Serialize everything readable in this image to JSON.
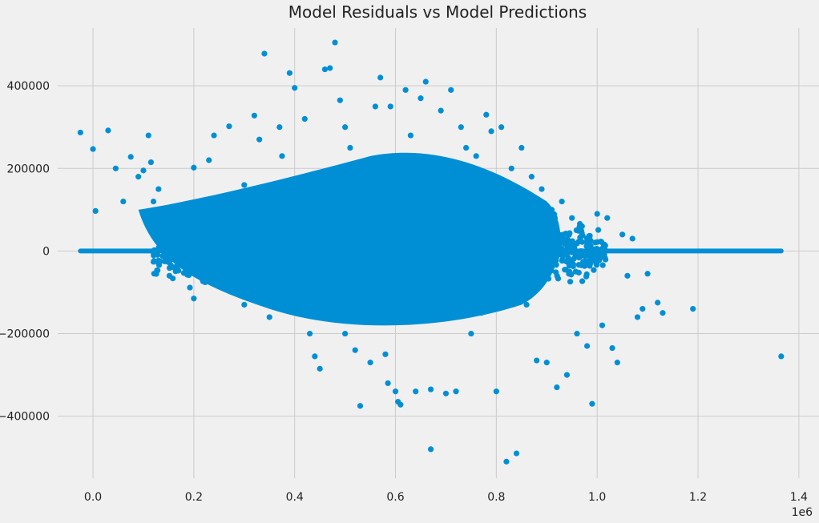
{
  "chart_data": {
    "type": "scatter",
    "title": "Model Residuals vs Model Predictions",
    "xlabel": "",
    "ylabel": "",
    "x_scale_label": "1e6",
    "x_ticks": [
      0.0,
      0.2,
      0.4,
      0.6,
      0.8,
      1.0,
      1.2,
      1.4
    ],
    "x_tick_labels": [
      "0.0",
      "0.2",
      "0.4",
      "0.6",
      "0.8",
      "1.0",
      "1.2",
      "1.4"
    ],
    "y_ticks": [
      -400000,
      -200000,
      0,
      200000,
      400000
    ],
    "y_tick_labels": [
      "−400000",
      "−200000",
      "0",
      "200000",
      "400000"
    ],
    "xlim": [
      -0.07,
      1.44
    ],
    "ylim": [
      -550000,
      540000
    ],
    "grid": true,
    "point_color": "#008fd5",
    "background_color": "#f0f0f0",
    "grid_color": "#cbcbcb",
    "series": [
      {
        "kind": "zero_line",
        "x_range": [
          -0.025,
          1.365
        ],
        "y": 0
      },
      {
        "kind": "residual_cloud",
        "points": [
          [
            -0.025,
            287000
          ],
          [
            0.0,
            247000
          ],
          [
            0.005,
            97000
          ],
          [
            0.03,
            292000
          ],
          [
            0.045,
            200000
          ],
          [
            0.06,
            120000
          ],
          [
            0.075,
            228000
          ],
          [
            0.09,
            180000
          ],
          [
            0.1,
            195000
          ],
          [
            0.11,
            280000
          ],
          [
            0.115,
            215000
          ],
          [
            0.12,
            120000
          ],
          [
            0.13,
            150000
          ],
          [
            0.14,
            100000
          ],
          [
            0.15,
            60000
          ],
          [
            0.16,
            20000
          ],
          [
            0.17,
            -10000
          ],
          [
            0.18,
            40000
          ],
          [
            0.19,
            -40000
          ],
          [
            0.2,
            202000
          ],
          [
            0.2,
            -115000
          ],
          [
            0.21,
            -60000
          ],
          [
            0.22,
            90000
          ],
          [
            0.23,
            220000
          ],
          [
            0.24,
            280000
          ],
          [
            0.25,
            -30000
          ],
          [
            0.26,
            120000
          ],
          [
            0.27,
            302000
          ],
          [
            0.28,
            -90000
          ],
          [
            0.3,
            160000
          ],
          [
            0.3,
            -130000
          ],
          [
            0.31,
            50000
          ],
          [
            0.32,
            328000
          ],
          [
            0.33,
            270000
          ],
          [
            0.34,
            478000
          ],
          [
            0.35,
            -160000
          ],
          [
            0.36,
            100000
          ],
          [
            0.37,
            300000
          ],
          [
            0.375,
            230000
          ],
          [
            0.39,
            431000
          ],
          [
            0.4,
            395000
          ],
          [
            0.41,
            -90000
          ],
          [
            0.42,
            320000
          ],
          [
            0.43,
            -200000
          ],
          [
            0.44,
            -255000
          ],
          [
            0.45,
            -285000
          ],
          [
            0.46,
            440000
          ],
          [
            0.47,
            443000
          ],
          [
            0.48,
            505000
          ],
          [
            0.49,
            365000
          ],
          [
            0.5,
            300000
          ],
          [
            0.5,
            -200000
          ],
          [
            0.51,
            250000
          ],
          [
            0.52,
            -240000
          ],
          [
            0.53,
            -375000
          ],
          [
            0.54,
            200000
          ],
          [
            0.55,
            -270000
          ],
          [
            0.56,
            350000
          ],
          [
            0.57,
            420000
          ],
          [
            0.58,
            -250000
          ],
          [
            0.585,
            -320000
          ],
          [
            0.59,
            350000
          ],
          [
            0.6,
            -340000
          ],
          [
            0.605,
            -365000
          ],
          [
            0.61,
            -372000
          ],
          [
            0.62,
            390000
          ],
          [
            0.63,
            280000
          ],
          [
            0.64,
            -340000
          ],
          [
            0.65,
            370000
          ],
          [
            0.66,
            410000
          ],
          [
            0.67,
            -480000
          ],
          [
            0.67,
            -335000
          ],
          [
            0.68,
            200000
          ],
          [
            0.69,
            340000
          ],
          [
            0.7,
            -345000
          ],
          [
            0.71,
            390000
          ],
          [
            0.72,
            -340000
          ],
          [
            0.73,
            300000
          ],
          [
            0.74,
            250000
          ],
          [
            0.75,
            -200000
          ],
          [
            0.76,
            230000
          ],
          [
            0.77,
            -150000
          ],
          [
            0.78,
            330000
          ],
          [
            0.79,
            290000
          ],
          [
            0.8,
            -340000
          ],
          [
            0.81,
            300000
          ],
          [
            0.82,
            -510000
          ],
          [
            0.83,
            200000
          ],
          [
            0.84,
            -490000
          ],
          [
            0.85,
            250000
          ],
          [
            0.86,
            -130000
          ],
          [
            0.87,
            180000
          ],
          [
            0.88,
            -265000
          ],
          [
            0.89,
            150000
          ],
          [
            0.9,
            -270000
          ],
          [
            0.91,
            100000
          ],
          [
            0.92,
            -330000
          ],
          [
            0.93,
            120000
          ],
          [
            0.94,
            -300000
          ],
          [
            0.95,
            80000
          ],
          [
            0.96,
            -200000
          ],
          [
            0.97,
            60000
          ],
          [
            0.98,
            -230000
          ],
          [
            0.99,
            -370000
          ],
          [
            1.0,
            90000
          ],
          [
            1.01,
            -180000
          ],
          [
            1.02,
            80000
          ],
          [
            1.03,
            -235000
          ],
          [
            1.04,
            -270000
          ],
          [
            1.05,
            40000
          ],
          [
            1.06,
            -60000
          ],
          [
            1.07,
            30000
          ],
          [
            1.08,
            -160000
          ],
          [
            1.09,
            -140000
          ],
          [
            1.1,
            -55000
          ],
          [
            1.12,
            -125000
          ],
          [
            1.13,
            -150000
          ],
          [
            1.19,
            -140000
          ],
          [
            1.365,
            -255000
          ]
        ]
      }
    ]
  }
}
